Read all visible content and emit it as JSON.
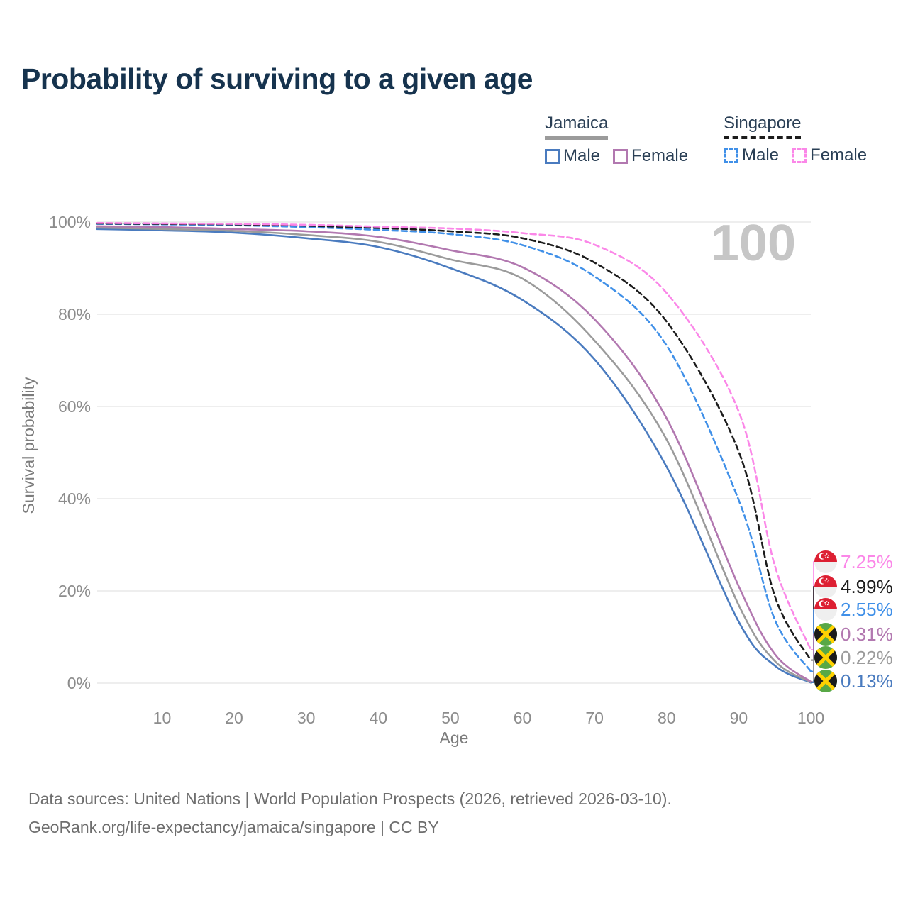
{
  "title": "Probability of surviving to a given age",
  "watermark": "100",
  "legend": {
    "jamaica": {
      "label": "Jamaica",
      "male": "Male",
      "female": "Female"
    },
    "singapore": {
      "label": "Singapore",
      "male": "Male",
      "female": "Female"
    }
  },
  "chart_data": {
    "type": "line",
    "title": "Probability of surviving to a given age",
    "xlabel": "Age",
    "ylabel": "Survival probability",
    "xlim": [
      1,
      100
    ],
    "ylim": [
      0,
      100
    ],
    "grid": "horizontal",
    "legend_position": "top-right",
    "x": [
      1,
      10,
      20,
      30,
      40,
      50,
      60,
      70,
      80,
      90,
      95,
      100
    ],
    "xticks": [
      10,
      20,
      30,
      40,
      50,
      60,
      70,
      80,
      90,
      100
    ],
    "yticks": [
      "100%",
      "80%",
      "60%",
      "40%",
      "20%",
      "0%"
    ],
    "series": [
      {
        "id": "jamaica-male",
        "name": "Jamaica Male",
        "country": "Jamaica",
        "line_style": "solid",
        "color": "#4a7bbf",
        "values": [
          98.5,
          98.2,
          97.7,
          96.5,
          94.6,
          90.0,
          83.1,
          70.2,
          46.9,
          13.3,
          3.8,
          0.13
        ],
        "end_label": "0.13%"
      },
      {
        "id": "jamaica-combined",
        "name": "Jamaica",
        "country": "Jamaica",
        "line_style": "solid",
        "color": "#9b9b9b",
        "values": [
          98.8,
          98.5,
          98.1,
          97.2,
          95.7,
          91.9,
          87.7,
          74.3,
          52.8,
          16.9,
          4.8,
          0.22
        ],
        "end_label": "0.22%"
      },
      {
        "id": "jamaica-female",
        "name": "Jamaica Female",
        "country": "Jamaica",
        "line_style": "solid",
        "color": "#b278b0",
        "values": [
          99.1,
          98.9,
          98.5,
          98.0,
          96.8,
          93.9,
          90.2,
          78.9,
          57.4,
          21.0,
          6.3,
          0.31
        ],
        "end_label": "0.31%"
      },
      {
        "id": "singapore-male",
        "name": "Singapore Male",
        "country": "Singapore",
        "line_style": "dashed",
        "color": "#4090e8",
        "values": [
          99.6,
          99.5,
          99.3,
          98.9,
          98.3,
          97.4,
          95.0,
          88.2,
          73.2,
          39.7,
          13.8,
          2.55
        ],
        "end_label": "2.55%"
      },
      {
        "id": "singapore-combined",
        "name": "Singapore",
        "country": "Singapore",
        "line_style": "dashed",
        "color": "#1c1c1c",
        "values": [
          99.7,
          99.6,
          99.5,
          99.2,
          98.7,
          98.0,
          96.5,
          91.2,
          78.4,
          50.2,
          18.9,
          4.99
        ],
        "end_label": "4.99%"
      },
      {
        "id": "singapore-female",
        "name": "Singapore Female",
        "country": "Singapore",
        "line_style": "dashed",
        "color": "#fb87e8",
        "values": [
          99.8,
          99.7,
          99.6,
          99.4,
          99.0,
          98.6,
          97.6,
          95.1,
          84.6,
          58.9,
          25.5,
          7.25
        ],
        "end_label": "7.25%"
      }
    ]
  },
  "footer": {
    "line1": "Data sources: United Nations | World Population Prospects (2026, retrieved 2026-03-10).",
    "line2": "GeoRank.org/life-expectancy/jamaica/singapore | CC BY"
  }
}
